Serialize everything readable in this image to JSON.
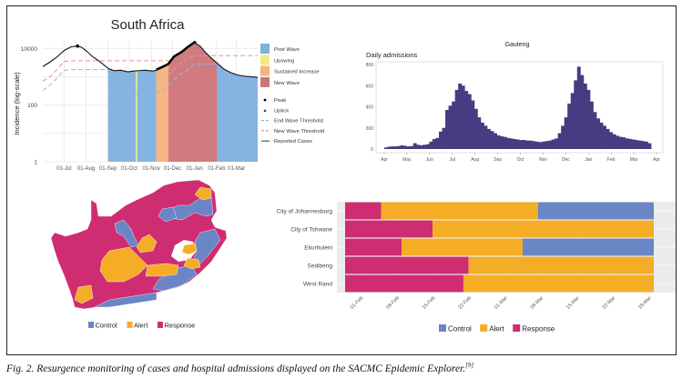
{
  "caption": {
    "text": "Fig. 2. Resurgence monitoring of cases and hospital admissions displayed on the SACMC Epidemic Explorer.",
    "ref": "[9]"
  },
  "chart_data": [
    {
      "id": "south-africa",
      "type": "area",
      "title": "South Africa",
      "xlabel": "",
      "ylabel": "Incidence (log-scale)",
      "yscale": "log",
      "ylim": [
        1,
        20000
      ],
      "yticks": [
        1,
        100,
        10000
      ],
      "ytick_labels": [
        "1",
        "100",
        "10000"
      ],
      "x_start": "2020-06-01",
      "x_end": "2021-03-31",
      "xticks": [
        "01-Jul",
        "01-Aug",
        "01-Sep",
        "01-Oct",
        "01-Nov",
        "01-Dec",
        "01-Jan",
        "01-Feb",
        "01-Mar"
      ],
      "xtick_days": [
        30,
        61,
        92,
        122,
        153,
        183,
        214,
        245,
        273
      ],
      "grid": true,
      "legend_position": "right",
      "legend": [
        {
          "label": "Post Wave",
          "kind": "fill",
          "color": "#7fb0e0"
        },
        {
          "label": "Upswing",
          "kind": "fill",
          "color": "#f0eb82"
        },
        {
          "label": "Sustained Increase",
          "kind": "fill",
          "color": "#f7b27a"
        },
        {
          "label": "New Wave",
          "kind": "fill",
          "color": "#cc7479"
        },
        {
          "label": "Peak",
          "kind": "point",
          "color": "#000000"
        },
        {
          "label": "Uptick",
          "kind": "triangle",
          "color": "#000000"
        },
        {
          "label": "End Wave Threshold",
          "kind": "dash",
          "color": "#7aaee0"
        },
        {
          "label": "New Wave Threshold",
          "kind": "dash",
          "color": "#d9787e"
        },
        {
          "label": "Reported Cases",
          "kind": "line",
          "color": "#555555"
        }
      ],
      "phases": [
        {
          "state": "Post Wave",
          "from_day": 92,
          "to_day": 131
        },
        {
          "state": "Upswing",
          "from_day": 131,
          "to_day": 133
        },
        {
          "state": "Post Wave",
          "from_day": 133,
          "to_day": 160
        },
        {
          "state": "Sustained Increase",
          "from_day": 160,
          "to_day": 177
        },
        {
          "state": "New Wave",
          "from_day": 177,
          "to_day": 246
        },
        {
          "state": "Post Wave",
          "from_day": 246,
          "to_day": 303
        }
      ],
      "series": [
        {
          "name": "Reported Cases",
          "days": [
            0,
            10,
            20,
            30,
            40,
            49,
            55,
            62,
            70,
            80,
            92,
            100,
            110,
            120,
            128,
            135,
            145,
            155,
            160,
            168,
            177,
            185,
            195,
            205,
            214,
            222,
            230,
            238,
            246,
            255,
            265,
            275,
            285,
            295,
            303
          ],
          "values": [
            2300,
            3300,
            5000,
            8500,
            11500,
            12200,
            11000,
            8000,
            5200,
            3500,
            2000,
            1650,
            1700,
            1500,
            1600,
            1650,
            1700,
            1600,
            1700,
            2100,
            2700,
            5000,
            7000,
            11000,
            16000,
            12000,
            7000,
            4500,
            3000,
            1900,
            1400,
            1150,
            1050,
            1000,
            950
          ]
        },
        {
          "name": "New Wave Threshold",
          "days": [
            0,
            10,
            20,
            30,
            40,
            92,
            178,
            179,
            190,
            205,
            214,
            245,
            303
          ],
          "values": [
            700,
            1000,
            1800,
            3500,
            3700,
            3700,
            3700,
            1200,
            2500,
            4500,
            5500,
            5600,
            5600
          ]
        },
        {
          "name": "End Wave Threshold",
          "days": [
            0,
            10,
            20,
            30,
            40,
            92,
            93,
            160,
            175,
            190,
            205,
            214,
            246,
            247,
            303
          ],
          "values": [
            330,
            500,
            900,
            1700,
            1800,
            1800,
            250,
            250,
            450,
            1000,
            1800,
            2800,
            2800,
            400,
            400
          ]
        }
      ],
      "peak": {
        "day": 49,
        "value": 12200
      }
    },
    {
      "id": "gauteng",
      "type": "bar",
      "title": "Gauteng",
      "subtitle": "Daily admissions",
      "xlabel": "",
      "ylabel": "",
      "ylim": [
        0,
        800
      ],
      "yticks": [
        0,
        200,
        400,
        600,
        800
      ],
      "xticks": [
        "Apr",
        "May",
        "Jun",
        "Jul",
        "Aug",
        "Sep",
        "Oct",
        "Nov",
        "Dec",
        "Jan",
        "Feb",
        "Mar",
        "Apr"
      ],
      "grid": false,
      "color": "#473c82",
      "weekly_values": [
        15,
        22,
        25,
        25,
        28,
        35,
        30,
        25,
        28,
        55,
        40,
        35,
        40,
        45,
        70,
        95,
        105,
        165,
        200,
        370,
        410,
        450,
        560,
        620,
        600,
        550,
        520,
        460,
        380,
        300,
        250,
        220,
        190,
        170,
        150,
        130,
        120,
        115,
        105,
        100,
        95,
        90,
        85,
        85,
        80,
        80,
        75,
        70,
        65,
        70,
        75,
        80,
        90,
        100,
        150,
        220,
        300,
        430,
        530,
        650,
        780,
        700,
        620,
        560,
        450,
        350,
        290,
        250,
        220,
        190,
        160,
        140,
        125,
        115,
        110,
        100,
        95,
        90,
        85,
        80,
        75,
        70,
        55
      ]
    },
    {
      "id": "districts",
      "type": "bar",
      "orientation": "horizontal-stacked-timeline",
      "title": "",
      "xlabel": "",
      "ylabel": "",
      "x_start": "2021-01-29",
      "x_end": "2021-03-29",
      "xticks": [
        "01-Feb",
        "08-Feb",
        "15-Feb",
        "22-Feb",
        "01-Mar",
        "08-Mar",
        "15-Mar",
        "22-Mar",
        "29-Mar"
      ],
      "xtick_days": [
        3,
        10,
        17,
        24,
        31,
        38,
        45,
        52,
        59
      ],
      "grid": true,
      "legend_position": "bottom",
      "legend": [
        {
          "label": "Control",
          "color": "#6a86c4"
        },
        {
          "label": "Alert",
          "color": "#f4ad25"
        },
        {
          "label": "Response",
          "color": "#cf2d72"
        }
      ],
      "categories": [
        "City of Johannesburg",
        "City of Tshwane",
        "Ekurhuleni",
        "Sedibeng",
        "West Rand"
      ],
      "segments": [
        [
          {
            "state": "Response",
            "from_day": 0,
            "to_day": 7
          },
          {
            "state": "Alert",
            "from_day": 7,
            "to_day": 37.5
          },
          {
            "state": "Control",
            "from_day": 37.5,
            "to_day": 60
          }
        ],
        [
          {
            "state": "Response",
            "from_day": 0,
            "to_day": 17
          },
          {
            "state": "Alert",
            "from_day": 17,
            "to_day": 60
          }
        ],
        [
          {
            "state": "Response",
            "from_day": 0,
            "to_day": 11
          },
          {
            "state": "Alert",
            "from_day": 11,
            "to_day": 34.5
          },
          {
            "state": "Control",
            "from_day": 34.5,
            "to_day": 60
          }
        ],
        [
          {
            "state": "Response",
            "from_day": 0,
            "to_day": 24
          },
          {
            "state": "Alert",
            "from_day": 24,
            "to_day": 60
          }
        ],
        [
          {
            "state": "Response",
            "from_day": 0,
            "to_day": 23
          },
          {
            "state": "Alert",
            "from_day": 23,
            "to_day": 60
          }
        ]
      ]
    },
    {
      "id": "sa-map",
      "type": "map",
      "title": "",
      "legend_position": "bottom",
      "legend": [
        {
          "label": "Control",
          "color": "#6a86c4"
        },
        {
          "label": "Alert",
          "color": "#f4ad25"
        },
        {
          "label": "Response",
          "color": "#cf2d72"
        }
      ]
    }
  ]
}
